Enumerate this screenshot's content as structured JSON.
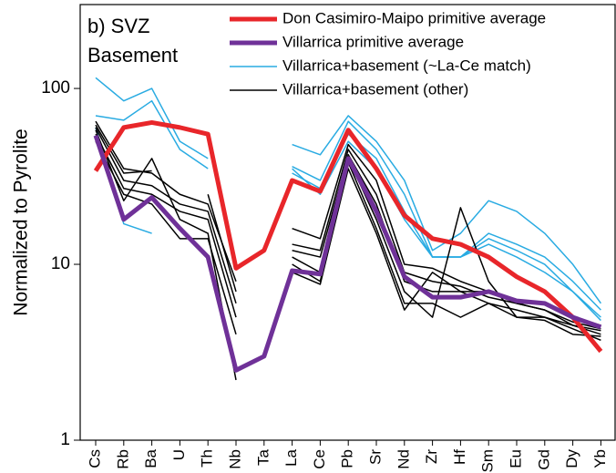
{
  "chart_data": {
    "type": "line",
    "annotation": [
      "b) SVZ",
      "Basement"
    ],
    "ylabel": "Normalized to Pyrolite",
    "categories": [
      "Cs",
      "Rb",
      "Ba",
      "U",
      "Th",
      "Nb",
      "Ta",
      "La",
      "Ce",
      "Pb",
      "Sr",
      "Nd",
      "Zr",
      "Hf",
      "Sm",
      "Eu",
      "Gd",
      "Dy",
      "Yb"
    ],
    "log_y": true,
    "ylim": [
      1,
      300
    ],
    "yticks": [
      1,
      10,
      100
    ],
    "series": [
      {
        "name": "Villarrica+basement (~La-Ce match)",
        "color": "#29abe2",
        "width": 1.5,
        "lines": [
          [
            115,
            85,
            100,
            50,
            40,
            null,
            null,
            48,
            42,
            70,
            50,
            30,
            12,
            15,
            23,
            20,
            15,
            10,
            6
          ],
          [
            70,
            66,
            85,
            45,
            35,
            null,
            null,
            36,
            30,
            65,
            45,
            25,
            11,
            11,
            15,
            13,
            11,
            8,
            5.5
          ],
          [
            60,
            17,
            15,
            null,
            null,
            null,
            null,
            33,
            27,
            55,
            40,
            20,
            11,
            11,
            14,
            12,
            10,
            7,
            5
          ],
          [
            null,
            null,
            null,
            null,
            null,
            null,
            null,
            35,
            25,
            50,
            35,
            18,
            11,
            11,
            13,
            11,
            9,
            7,
            4.8
          ]
        ]
      },
      {
        "name": "Villarrica+basement (other)",
        "color": "#000000",
        "width": 1.5,
        "lines": [
          [
            65,
            35,
            33,
            25,
            22,
            8,
            null,
            16,
            14,
            48,
            30,
            10,
            9.5,
            8,
            7,
            6,
            6,
            5,
            4.5
          ],
          [
            60,
            30,
            28,
            22,
            20,
            6,
            null,
            13,
            12,
            45,
            25,
            9,
            8,
            7.5,
            6.5,
            6,
            5.5,
            4.7,
            4.3
          ],
          [
            55,
            27,
            25,
            20,
            18,
            5,
            null,
            12,
            11,
            42,
            22,
            8,
            7,
            7,
            6,
            5.5,
            5,
            4.5,
            4
          ],
          [
            50,
            25,
            22,
            14,
            14,
            4,
            null,
            11,
            9,
            40,
            18,
            7,
            5,
            21,
            8,
            5,
            5,
            4.3,
            3.7
          ],
          [
            62,
            33,
            34,
            null,
            25,
            7,
            null,
            10,
            8,
            38,
            16,
            6,
            6,
            5,
            6,
            5,
            4.8,
            4,
            3.9
          ],
          [
            58,
            23,
            40,
            18,
            15,
            2.2,
            null,
            9,
            7.7,
            35,
            15,
            5.5,
            9,
            7,
            7,
            6,
            5.5,
            4.5,
            4.2
          ]
        ]
      },
      {
        "name": "Don Casimiro-Maipo primitive average",
        "color": "#e8262a",
        "width": 5,
        "lines": [
          [
            34,
            60,
            64,
            60,
            55,
            9.5,
            12,
            30,
            26,
            58,
            35,
            19,
            14,
            13,
            11,
            8.5,
            7,
            5,
            3.2
          ]
        ]
      },
      {
        "name": "Villarrica primitive average",
        "color": "#6f3198",
        "width": 5,
        "lines": [
          [
            54,
            18,
            24,
            16,
            11,
            2.5,
            3,
            9.2,
            8.8,
            40,
            20,
            8.5,
            6.5,
            6.5,
            7,
            6.2,
            6,
            5,
            4.4
          ]
        ]
      }
    ],
    "legend_order": [
      2,
      3,
      0,
      1
    ]
  }
}
